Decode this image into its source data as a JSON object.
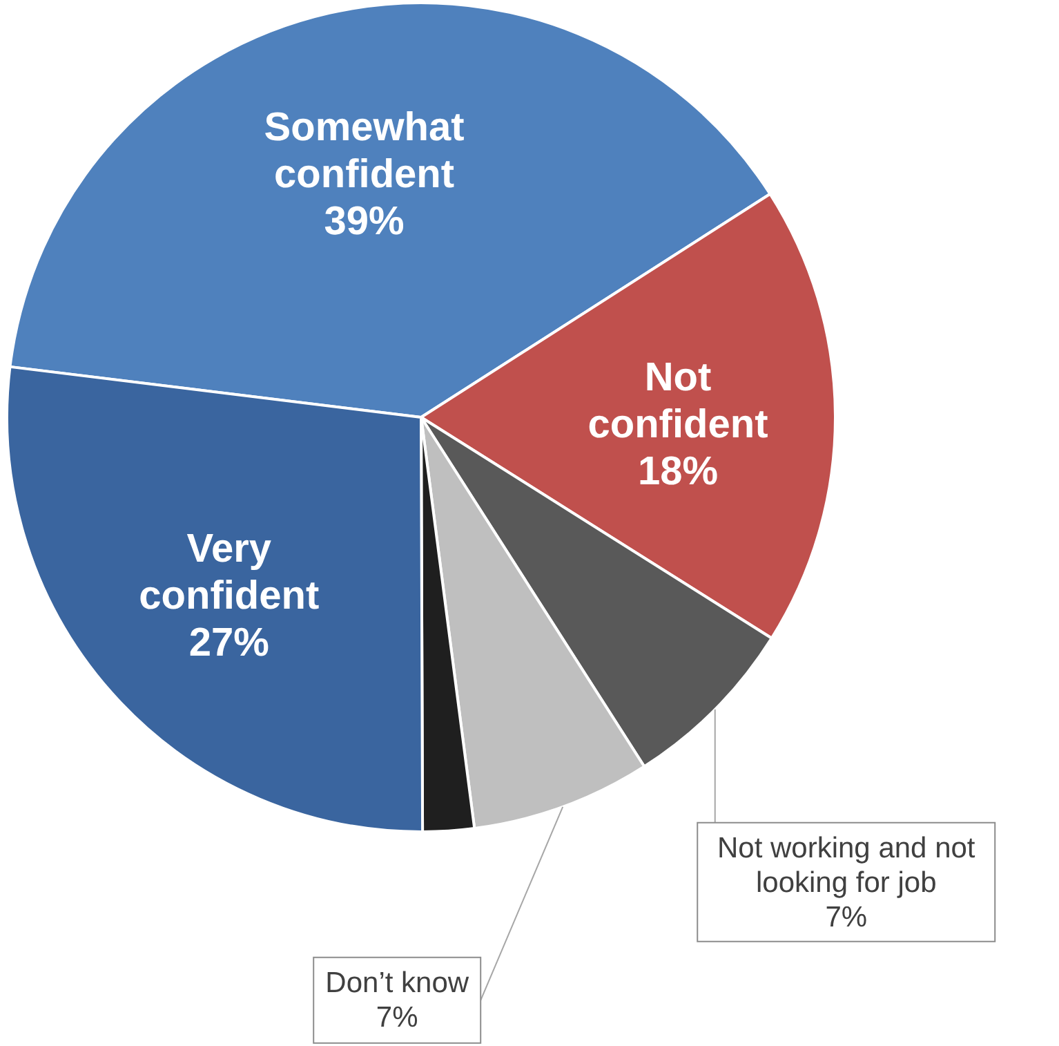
{
  "chart_data": {
    "type": "pie",
    "categories": [
      "Somewhat confident",
      "Not confident",
      "Not working and not looking for job",
      "Don’t know",
      null,
      "Very confident"
    ],
    "values": [
      39,
      18,
      7,
      7,
      2,
      27
    ],
    "value_labels": [
      "39%",
      "18%",
      "7%",
      "7%",
      null,
      "27%"
    ],
    "colors": [
      "#4f81bd",
      "#c0504d",
      "#595959",
      "#bfbfbf",
      "#1f1f1f",
      "#3a659f"
    ]
  }
}
